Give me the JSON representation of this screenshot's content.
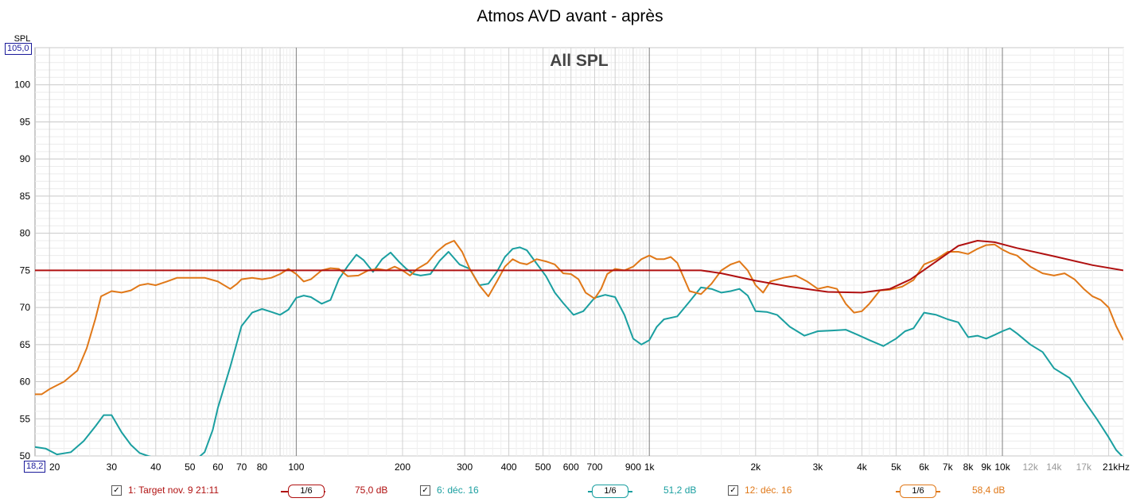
{
  "header": {
    "title": "Atmos AVD avant - après"
  },
  "chart_data": {
    "type": "line",
    "title": "Atmos AVD avant - après",
    "subtitle": "All SPL",
    "ylabel": "SPL",
    "xscale": "log",
    "xlim": [
      18.2,
      22000
    ],
    "ylim": [
      50,
      105
    ],
    "y_top_label": "105,0",
    "x_left_label": "18,2",
    "y_ticks": [
      "100",
      "95",
      "90",
      "85",
      "80",
      "75",
      "70",
      "65",
      "60",
      "55",
      "50"
    ],
    "x_ticks": [
      {
        "v": 20,
        "l": "20"
      },
      {
        "v": 30,
        "l": "30"
      },
      {
        "v": 40,
        "l": "40"
      },
      {
        "v": 50,
        "l": "50"
      },
      {
        "v": 60,
        "l": "60"
      },
      {
        "v": 70,
        "l": "70"
      },
      {
        "v": 80,
        "l": "80"
      },
      {
        "v": 100,
        "l": "100"
      },
      {
        "v": 200,
        "l": "200"
      },
      {
        "v": 300,
        "l": "300"
      },
      {
        "v": 400,
        "l": "400"
      },
      {
        "v": 500,
        "l": "500"
      },
      {
        "v": 600,
        "l": "600"
      },
      {
        "v": 700,
        "l": "700"
      },
      {
        "v": 900,
        "l": "900"
      },
      {
        "v": 1000,
        "l": "1k"
      },
      {
        "v": 2000,
        "l": "2k"
      },
      {
        "v": 3000,
        "l": "3k"
      },
      {
        "v": 4000,
        "l": "4k"
      },
      {
        "v": 5000,
        "l": "5k"
      },
      {
        "v": 6000,
        "l": "6k"
      },
      {
        "v": 7000,
        "l": "7k"
      },
      {
        "v": 8000,
        "l": "8k"
      },
      {
        "v": 9000,
        "l": "9k"
      },
      {
        "v": 10000,
        "l": "10k"
      },
      {
        "v": 12000,
        "l": "12k",
        "muted": true
      },
      {
        "v": 14000,
        "l": "14k",
        "muted": true
      },
      {
        "v": 17000,
        "l": "17k",
        "muted": true
      },
      {
        "v": 21000,
        "l": "21kHz"
      }
    ],
    "grid": true,
    "series": [
      {
        "name": "1: Target nov. 9 21:11",
        "color": "#b01010",
        "smoothing": "1/6",
        "level": "75,0 dB",
        "x": [
          18.2,
          1400,
          1600,
          2000,
          2500,
          3200,
          4000,
          4800,
          5500,
          6500,
          7500,
          8500,
          9500,
          11000,
          14000,
          18000,
          22000
        ],
        "y": [
          75,
          75,
          74.6,
          73.6,
          72.8,
          72.1,
          72.0,
          72.5,
          73.8,
          76.2,
          78.3,
          79.0,
          78.8,
          78.0,
          76.9,
          75.7,
          75.0
        ]
      },
      {
        "name": "6: déc. 16",
        "color": "#1a9fa0",
        "smoothing": "1/6",
        "level": "51,2 dB",
        "x": [
          18.2,
          19.5,
          21,
          23,
          25,
          27,
          28.5,
          30,
          32,
          34,
          36,
          38,
          45,
          52,
          55,
          58,
          60,
          65,
          70,
          75,
          80,
          85,
          90,
          95,
          100,
          105,
          110,
          118,
          125,
          132,
          140,
          148,
          155,
          165,
          175,
          185,
          195,
          205,
          215,
          225,
          240,
          255,
          270,
          290,
          310,
          330,
          350,
          370,
          390,
          410,
          430,
          450,
          480,
          510,
          540,
          570,
          610,
          650,
          700,
          750,
          800,
          850,
          900,
          950,
          1000,
          1050,
          1100,
          1200,
          1300,
          1400,
          1500,
          1600,
          1700,
          1800,
          1900,
          2000,
          2150,
          2300,
          2500,
          2750,
          3000,
          3300,
          3600,
          3900,
          4200,
          4600,
          5000,
          5300,
          5600,
          6000,
          6500,
          7000,
          7500,
          8000,
          8500,
          9000,
          9500,
          10000,
          10500,
          11000,
          12000,
          13000,
          14000,
          15500,
          17000,
          18500,
          20000,
          21000,
          22000
        ],
        "y": [
          51.2,
          51.0,
          50.2,
          50.5,
          52,
          54,
          55.5,
          55.5,
          53.2,
          51.5,
          50.4,
          50.0,
          48.8,
          49.5,
          50.5,
          53.5,
          56.5,
          62.0,
          67.5,
          69.3,
          69.8,
          69.4,
          69.0,
          69.7,
          71.3,
          71.6,
          71.4,
          70.5,
          71.0,
          73.8,
          75.6,
          77.1,
          76.4,
          74.8,
          76.5,
          77.4,
          76.2,
          75.2,
          74.5,
          74.3,
          74.5,
          76.3,
          77.5,
          75.8,
          75.2,
          73.0,
          73.2,
          74.8,
          76.8,
          77.9,
          78.1,
          77.7,
          75.9,
          74.2,
          72.0,
          70.6,
          69.0,
          69.5,
          71.3,
          71.7,
          71.4,
          69.0,
          65.8,
          65.0,
          65.6,
          67.4,
          68.4,
          68.8,
          70.8,
          72.7,
          72.5,
          72.0,
          72.2,
          72.5,
          71.6,
          69.5,
          69.4,
          69.0,
          67.4,
          66.2,
          66.8,
          66.9,
          67.0,
          66.3,
          65.6,
          64.8,
          65.8,
          66.8,
          67.2,
          69.3,
          69.0,
          68.4,
          68.0,
          66.0,
          66.2,
          65.8,
          66.3,
          66.8,
          67.2,
          66.5,
          65.0,
          64.0,
          61.8,
          60.5,
          57.5,
          55.0,
          52.5,
          50.8,
          49.8
        ]
      },
      {
        "name": "12: déc. 16",
        "color": "#e07818",
        "smoothing": "1/6",
        "level": "58,4 dB",
        "x": [
          18.2,
          19,
          20,
          22,
          24,
          25.5,
          27,
          28,
          30,
          32,
          34,
          36,
          38,
          40,
          43,
          46,
          50,
          55,
          60,
          65,
          68,
          70,
          75,
          80,
          85,
          90,
          95,
          100,
          105,
          110,
          118,
          125,
          132,
          140,
          150,
          160,
          170,
          180,
          190,
          200,
          210,
          220,
          235,
          250,
          265,
          280,
          295,
          310,
          330,
          350,
          370,
          390,
          410,
          430,
          450,
          480,
          510,
          540,
          570,
          600,
          630,
          660,
          700,
          730,
          760,
          800,
          850,
          900,
          950,
          1000,
          1050,
          1100,
          1150,
          1200,
          1300,
          1400,
          1500,
          1600,
          1700,
          1800,
          1900,
          2000,
          2100,
          2200,
          2400,
          2600,
          2800,
          3000,
          3200,
          3400,
          3600,
          3800,
          4000,
          4200,
          4500,
          4800,
          5200,
          5600,
          6000,
          6500,
          7000,
          7500,
          8000,
          8500,
          9000,
          9500,
          10000,
          10500,
          11000,
          12000,
          13000,
          14000,
          15000,
          16000,
          17000,
          18000,
          19000,
          20000,
          21000,
          22000
        ],
        "y": [
          58.3,
          58.3,
          59.0,
          60.0,
          61.5,
          64.5,
          68.5,
          71.5,
          72.2,
          72.0,
          72.3,
          73.0,
          73.2,
          73.0,
          73.5,
          74.0,
          74.0,
          74.0,
          73.5,
          72.5,
          73.2,
          73.8,
          74.0,
          73.8,
          74.0,
          74.5,
          75.2,
          74.5,
          73.5,
          73.8,
          75.0,
          75.3,
          75.2,
          74.2,
          74.3,
          75.0,
          75.2,
          75.0,
          75.5,
          75.0,
          74.3,
          75.2,
          76.0,
          77.5,
          78.5,
          79.0,
          77.5,
          75.2,
          73.0,
          71.5,
          73.5,
          75.5,
          76.5,
          76.0,
          75.8,
          76.5,
          76.2,
          75.8,
          74.6,
          74.5,
          73.8,
          72.0,
          71.2,
          72.5,
          74.5,
          75.2,
          75.0,
          75.5,
          76.5,
          77.0,
          76.5,
          76.5,
          76.8,
          76.0,
          72.2,
          71.8,
          73.2,
          75.0,
          75.8,
          76.2,
          75.0,
          73.0,
          72.0,
          73.5,
          74.0,
          74.3,
          73.5,
          72.5,
          72.8,
          72.5,
          70.5,
          69.3,
          69.5,
          70.5,
          72.3,
          72.4,
          72.8,
          73.7,
          75.8,
          76.5,
          77.5,
          77.5,
          77.2,
          77.9,
          78.4,
          78.5,
          77.8,
          77.3,
          77.0,
          75.5,
          74.6,
          74.3,
          74.6,
          73.8,
          72.5,
          71.5,
          71.0,
          70.0,
          67.5,
          65.6
        ]
      }
    ]
  }
}
